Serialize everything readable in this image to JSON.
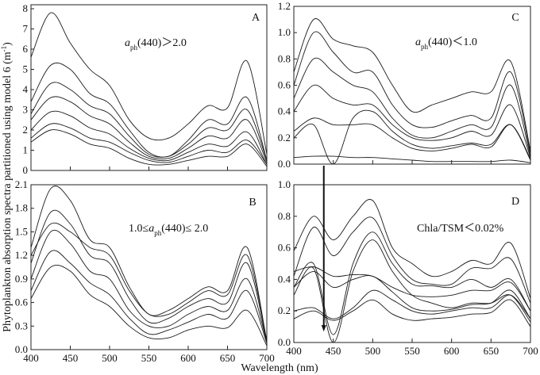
{
  "chart_data": {
    "type": "line",
    "ylabel": "Phytoplankton absorption spectra partitioned using model 6 (m",
    "ylabel_sup": "-1",
    "ylabel_close": ")",
    "xlabel": "Wavelength (nm)",
    "x": [
      400,
      425,
      450,
      475,
      500,
      525,
      550,
      575,
      600,
      625,
      650,
      675,
      700
    ],
    "xlim": [
      400,
      700
    ],
    "xticks": [
      400,
      450,
      500,
      550,
      600,
      650,
      700
    ],
    "line_color": "#1a1a1a",
    "arrow": {
      "wavelength": 438,
      "from_panel": "C",
      "from_value": 0.0,
      "to_panel": "D",
      "to_value": 0.07
    },
    "panels": [
      {
        "id": "A",
        "label": "A",
        "ylim": [
          0,
          8
        ],
        "yticks": [
          0,
          1,
          2,
          3,
          4,
          5,
          6,
          7,
          8
        ],
        "ytick_labels": [
          "0",
          "1",
          "2",
          "3",
          "4",
          "5",
          "6",
          "7",
          "8"
        ],
        "show_xtick_labels": false,
        "annotation": {
          "pre": "",
          "italic": "a",
          "sub": "ph",
          "post": "(440)＞2.0"
        },
        "series": [
          {
            "values": [
              5.6,
              7.8,
              6.3,
              5.0,
              4.2,
              2.5,
              1.6,
              1.6,
              2.3,
              3.2,
              3.1,
              5.4,
              0.8
            ]
          },
          {
            "values": [
              3.4,
              5.2,
              5.0,
              3.8,
              3.3,
              2.0,
              0.9,
              0.7,
              1.5,
              2.5,
              2.3,
              3.6,
              0.5
            ]
          },
          {
            "values": [
              2.8,
              4.3,
              4.0,
              3.2,
              2.8,
              1.7,
              0.8,
              0.7,
              1.3,
              2.1,
              2.0,
              3.0,
              0.5
            ]
          },
          {
            "values": [
              2.5,
              3.6,
              3.4,
              2.7,
              2.3,
              1.4,
              0.7,
              0.6,
              1.1,
              1.7,
              1.6,
              2.5,
              0.4
            ]
          },
          {
            "values": [
              2.0,
              2.9,
              2.7,
              2.1,
              1.8,
              1.1,
              0.6,
              0.5,
              0.9,
              1.3,
              1.2,
              1.9,
              0.3
            ]
          },
          {
            "values": [
              1.6,
              2.3,
              2.1,
              1.6,
              1.4,
              0.9,
              0.5,
              0.4,
              0.7,
              1.0,
              0.9,
              1.5,
              0.3
            ]
          },
          {
            "values": [
              1.4,
              2.0,
              1.8,
              1.3,
              1.1,
              0.6,
              0.3,
              0.3,
              0.5,
              0.7,
              0.7,
              1.3,
              0.2
            ]
          }
        ]
      },
      {
        "id": "B",
        "label": "B",
        "ylim": [
          0,
          2.1
        ],
        "yticks": [
          0,
          0.3,
          0.6,
          0.9,
          1.2,
          1.5,
          1.8,
          2.1
        ],
        "ytick_labels": [
          "0.0",
          "0.3",
          "0.6",
          "0.9",
          "1.2",
          "1.5",
          "1.8",
          "2.1"
        ],
        "show_xtick_labels": true,
        "annotation": {
          "pre": "1.0≤",
          "italic": "a",
          "sub": "ph",
          "post": "(440)≤ 2.0"
        },
        "series": [
          {
            "values": [
              1.3,
              2.05,
              1.9,
              1.4,
              1.3,
              0.8,
              0.45,
              0.5,
              0.65,
              0.8,
              0.75,
              1.3,
              0.1
            ]
          },
          {
            "values": [
              1.2,
              1.6,
              1.5,
              1.3,
              1.2,
              0.75,
              0.45,
              0.45,
              0.6,
              0.75,
              0.7,
              1.2,
              0.12
            ]
          },
          {
            "values": [
              1.1,
              1.75,
              1.6,
              1.2,
              1.1,
              0.65,
              0.35,
              0.4,
              0.55,
              0.65,
              0.6,
              1.1,
              0.1
            ]
          },
          {
            "values": [
              0.9,
              1.5,
              1.35,
              1.0,
              0.9,
              0.5,
              0.3,
              0.3,
              0.45,
              0.55,
              0.5,
              0.9,
              0.1
            ]
          },
          {
            "values": [
              0.75,
              1.25,
              1.1,
              0.85,
              0.7,
              0.4,
              0.2,
              0.25,
              0.35,
              0.45,
              0.4,
              0.75,
              0.08
            ]
          },
          {
            "values": [
              0.65,
              1.05,
              1.0,
              0.7,
              0.55,
              0.3,
              0.15,
              0.15,
              0.25,
              0.3,
              0.28,
              0.5,
              0.05
            ]
          }
        ]
      },
      {
        "id": "C",
        "label": "C",
        "ylim": [
          0,
          1.2
        ],
        "yticks": [
          0,
          0.2,
          0.4,
          0.6,
          0.8,
          1.0,
          1.2
        ],
        "ytick_labels": [
          "0.0",
          "0.2",
          "0.4",
          "0.6",
          "0.8",
          "1.0",
          "1.2"
        ],
        "show_xtick_labels": false,
        "annotation": {
          "pre": "",
          "italic": "a",
          "sub": "ph",
          "post": "(440)＜1.0"
        },
        "series": [
          {
            "values": [
              0.7,
              1.1,
              0.95,
              0.9,
              0.85,
              0.6,
              0.4,
              0.45,
              0.5,
              0.55,
              0.55,
              0.78,
              0.1
            ]
          },
          {
            "values": [
              0.6,
              1.0,
              0.85,
              0.7,
              0.7,
              0.45,
              0.3,
              0.28,
              0.33,
              0.37,
              0.35,
              0.7,
              0.08
            ]
          },
          {
            "values": [
              0.5,
              0.8,
              0.7,
              0.6,
              0.55,
              0.35,
              0.22,
              0.2,
              0.25,
              0.3,
              0.28,
              0.6,
              0.06
            ]
          },
          {
            "values": [
              0.4,
              0.6,
              0.5,
              0.45,
              0.45,
              0.3,
              0.2,
              0.18,
              0.2,
              0.25,
              0.22,
              0.45,
              0.05
            ]
          },
          {
            "values": [
              0.25,
              0.35,
              0.3,
              0.3,
              0.3,
              0.2,
              0.12,
              0.1,
              0.12,
              0.15,
              0.13,
              0.3,
              0.04
            ]
          },
          {
            "values": [
              0.2,
              0.3,
              0.0,
              0.35,
              0.4,
              0.25,
              0.15,
              0.12,
              0.14,
              0.16,
              0.15,
              0.3,
              0.03
            ]
          },
          {
            "values": [
              0.05,
              0.06,
              0.06,
              0.05,
              0.05,
              0.04,
              0.03,
              0.02,
              0.02,
              0.02,
              0.02,
              0.03,
              0.01
            ]
          }
        ]
      },
      {
        "id": "D",
        "label": "D",
        "ylim": [
          0,
          1.0
        ],
        "yticks": [
          0,
          0.2,
          0.4,
          0.6,
          0.8,
          1.0
        ],
        "ytick_labels": [
          "0.0",
          "0.2",
          "0.4",
          "0.6",
          "0.8",
          "1.0"
        ],
        "show_xtick_labels": true,
        "annotation": {
          "pre": "Chla/TSM＜0.02%",
          "italic": "",
          "sub": "",
          "post": ""
        },
        "series": [
          {
            "values": [
              0.58,
              0.8,
              0.65,
              0.8,
              0.9,
              0.6,
              0.5,
              0.42,
              0.45,
              0.52,
              0.5,
              0.63,
              0.28
            ]
          },
          {
            "values": [
              0.42,
              0.73,
              0.55,
              0.7,
              0.79,
              0.55,
              0.4,
              0.37,
              0.37,
              0.47,
              0.47,
              0.53,
              0.25
            ]
          },
          {
            "values": [
              0.35,
              0.5,
              0.05,
              0.5,
              0.7,
              0.5,
              0.37,
              0.36,
              0.35,
              0.4,
              0.35,
              0.4,
              0.2
            ]
          },
          {
            "values": [
              0.3,
              0.47,
              0.0,
              0.45,
              0.65,
              0.45,
              0.3,
              0.25,
              0.22,
              0.25,
              0.25,
              0.3,
              0.13
            ]
          },
          {
            "values": [
              0.45,
              0.48,
              0.42,
              0.43,
              0.42,
              0.35,
              0.3,
              0.29,
              0.3,
              0.33,
              0.33,
              0.38,
              0.2
            ]
          },
          {
            "values": [
              0.35,
              0.45,
              0.35,
              0.4,
              0.42,
              0.32,
              0.22,
              0.2,
              0.21,
              0.24,
              0.25,
              0.33,
              0.15
            ]
          },
          {
            "values": [
              0.2,
              0.22,
              0.15,
              0.22,
              0.33,
              0.27,
              0.2,
              0.18,
              0.2,
              0.22,
              0.22,
              0.3,
              0.15
            ]
          },
          {
            "values": [
              0.15,
              0.2,
              0.14,
              0.2,
              0.27,
              0.18,
              0.14,
              0.15,
              0.16,
              0.18,
              0.19,
              0.27,
              0.1
            ]
          }
        ]
      }
    ]
  }
}
